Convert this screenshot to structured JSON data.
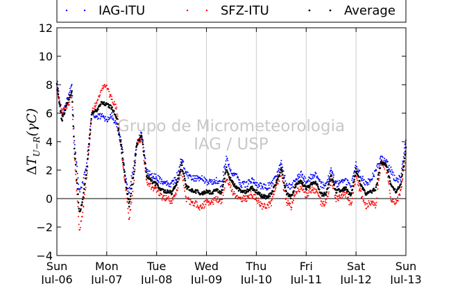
{
  "chart_data": {
    "type": "scatter",
    "title": "",
    "xlabel": "",
    "ylabel": "ΔT_{U-R}(γC)",
    "ylabel_parts": {
      "delta": "Δ",
      "t": "T",
      "sub": "U−R",
      "unit": "(γC)"
    },
    "ylim": [
      -4,
      12
    ],
    "xlim": [
      0,
      7
    ],
    "y_ticks": [
      -4,
      -2,
      0,
      2,
      4,
      6,
      8,
      10,
      12
    ],
    "y_tick_labels": [
      "−4",
      "−2",
      "0",
      "2",
      "4",
      "6",
      "8",
      "10",
      "12"
    ],
    "x_ticks": [
      0,
      1,
      2,
      3,
      4,
      5,
      6,
      7
    ],
    "x_tick_labels": [
      {
        "day": "Sun",
        "date": "Jul-06"
      },
      {
        "day": "Mon",
        "date": "Jul-07"
      },
      {
        "day": "Tue",
        "date": "Jul-08"
      },
      {
        "day": "Wed",
        "date": "Jul-09"
      },
      {
        "day": "Thu",
        "date": "Jul-10"
      },
      {
        "day": "Fri",
        "date": "Jul-11"
      },
      {
        "day": "Sat",
        "date": "Jul-12"
      },
      {
        "day": "Sun",
        "date": "Jul-13"
      }
    ],
    "grid": "vertical",
    "zero_line": true,
    "legend_placement": "top, outside plot",
    "watermark": {
      "line1": "Grupo de Micrometeorologia",
      "line2": "IAG / USP"
    },
    "series": [
      {
        "name": "IAG-ITU",
        "color": "#0000ff",
        "x": [
          0.0,
          0.1,
          0.2,
          0.3,
          0.35,
          0.45,
          0.5,
          0.6,
          0.7,
          0.8,
          0.9,
          1.0,
          1.1,
          1.2,
          1.3,
          1.4,
          1.45,
          1.55,
          1.6,
          1.7,
          1.8,
          1.9,
          2.0,
          2.1,
          2.2,
          2.3,
          2.4,
          2.5,
          2.6,
          2.7,
          2.8,
          2.9,
          3.0,
          3.1,
          3.2,
          3.3,
          3.4,
          3.5,
          3.6,
          3.7,
          3.8,
          3.9,
          4.0,
          4.1,
          4.2,
          4.3,
          4.4,
          4.5,
          4.6,
          4.7,
          4.8,
          4.9,
          5.0,
          5.1,
          5.2,
          5.3,
          5.4,
          5.5,
          5.6,
          5.7,
          5.8,
          5.9,
          6.0,
          6.1,
          6.2,
          6.3,
          6.4,
          6.5,
          6.6,
          6.7,
          6.8,
          6.9,
          7.0
        ],
        "y": [
          8.2,
          6.0,
          6.8,
          8.0,
          4.0,
          0.5,
          0.8,
          2.5,
          6.0,
          5.8,
          5.8,
          5.5,
          5.8,
          5.2,
          3.8,
          1.0,
          0.5,
          2.5,
          3.8,
          4.6,
          2.0,
          1.6,
          1.5,
          1.2,
          1.1,
          1.0,
          1.5,
          2.8,
          1.7,
          1.5,
          1.4,
          1.4,
          1.2,
          1.1,
          1.3,
          1.0,
          2.8,
          1.8,
          1.6,
          1.0,
          1.0,
          1.3,
          1.0,
          0.9,
          0.8,
          1.0,
          1.5,
          2.5,
          1.0,
          0.8,
          1.5,
          1.7,
          1.2,
          1.5,
          1.7,
          1.0,
          0.9,
          2.0,
          1.0,
          1.1,
          1.2,
          0.9,
          2.4,
          1.5,
          1.1,
          1.3,
          2.0,
          2.8,
          2.6,
          2.0,
          1.2,
          1.5,
          4.1
        ]
      },
      {
        "name": "SFZ-ITU",
        "color": "#ff0000",
        "x": [
          0.0,
          0.1,
          0.2,
          0.3,
          0.35,
          0.45,
          0.5,
          0.6,
          0.7,
          0.8,
          0.9,
          1.0,
          1.1,
          1.2,
          1.3,
          1.4,
          1.45,
          1.55,
          1.6,
          1.7,
          1.8,
          1.9,
          2.0,
          2.1,
          2.2,
          2.3,
          2.4,
          2.5,
          2.6,
          2.7,
          2.8,
          2.9,
          3.0,
          3.1,
          3.2,
          3.3,
          3.4,
          3.5,
          3.6,
          3.7,
          3.8,
          3.9,
          4.0,
          4.1,
          4.2,
          4.3,
          4.4,
          4.5,
          4.6,
          4.7,
          4.8,
          4.9,
          5.0,
          5.1,
          5.2,
          5.3,
          5.4,
          5.5,
          5.6,
          5.7,
          5.8,
          5.9,
          6.0,
          6.1,
          6.2,
          6.3,
          6.4,
          6.5,
          6.6,
          6.7,
          6.8,
          6.9,
          7.0
        ],
        "y": [
          7.8,
          6.0,
          6.5,
          7.2,
          3.0,
          -2.2,
          -1.5,
          1.5,
          6.0,
          6.8,
          7.8,
          7.8,
          7.0,
          6.3,
          3.0,
          0.2,
          -1.5,
          1.5,
          3.8,
          4.3,
          1.2,
          0.8,
          0.6,
          0.1,
          0.0,
          -0.2,
          0.5,
          2.0,
          0.0,
          -0.3,
          -0.4,
          -0.7,
          -0.2,
          -0.3,
          0.0,
          -0.2,
          1.5,
          0.6,
          0.1,
          0.0,
          0.0,
          0.3,
          0.0,
          -0.5,
          -0.6,
          -0.3,
          0.8,
          1.7,
          -0.2,
          -0.6,
          0.5,
          0.8,
          0.2,
          0.6,
          0.5,
          -0.3,
          -0.3,
          1.3,
          0.0,
          0.2,
          0.3,
          -0.5,
          1.6,
          0.3,
          -0.5,
          -0.2,
          -0.6,
          2.5,
          2.2,
          0.0,
          -0.3,
          0.5,
          3.2
        ]
      },
      {
        "name": "Average",
        "color": "#000000",
        "x": [
          0.0,
          0.1,
          0.2,
          0.3,
          0.35,
          0.45,
          0.5,
          0.6,
          0.7,
          0.8,
          0.9,
          1.0,
          1.1,
          1.2,
          1.3,
          1.4,
          1.45,
          1.55,
          1.6,
          1.7,
          1.8,
          1.9,
          2.0,
          2.1,
          2.2,
          2.3,
          2.4,
          2.5,
          2.6,
          2.7,
          2.8,
          2.9,
          3.0,
          3.1,
          3.2,
          3.3,
          3.4,
          3.5,
          3.6,
          3.7,
          3.8,
          3.9,
          4.0,
          4.1,
          4.2,
          4.3,
          4.4,
          4.5,
          4.6,
          4.7,
          4.8,
          4.9,
          5.0,
          5.1,
          5.2,
          5.3,
          5.4,
          5.5,
          5.6,
          5.7,
          5.8,
          5.9,
          6.0,
          6.1,
          6.2,
          6.3,
          6.4,
          6.5,
          6.6,
          6.7,
          6.8,
          6.9,
          7.0
        ],
        "y": [
          8.0,
          5.5,
          6.6,
          7.5,
          3.5,
          -1.0,
          -0.5,
          2.0,
          6.0,
          6.2,
          6.8,
          6.6,
          6.4,
          5.7,
          3.4,
          0.6,
          -0.5,
          2.0,
          3.8,
          4.5,
          1.6,
          1.2,
          1.0,
          0.6,
          0.5,
          0.4,
          1.0,
          2.4,
          0.8,
          0.6,
          0.5,
          0.3,
          0.5,
          0.4,
          0.6,
          0.4,
          2.1,
          1.2,
          0.8,
          0.5,
          0.5,
          0.8,
          0.5,
          0.2,
          0.1,
          0.3,
          1.1,
          2.1,
          0.4,
          0.1,
          1.0,
          1.2,
          0.7,
          1.0,
          1.1,
          0.3,
          0.3,
          1.6,
          0.5,
          0.6,
          0.7,
          0.2,
          2.0,
          0.9,
          0.3,
          0.5,
          0.7,
          2.6,
          2.4,
          1.0,
          0.5,
          1.0,
          3.6
        ]
      }
    ]
  }
}
